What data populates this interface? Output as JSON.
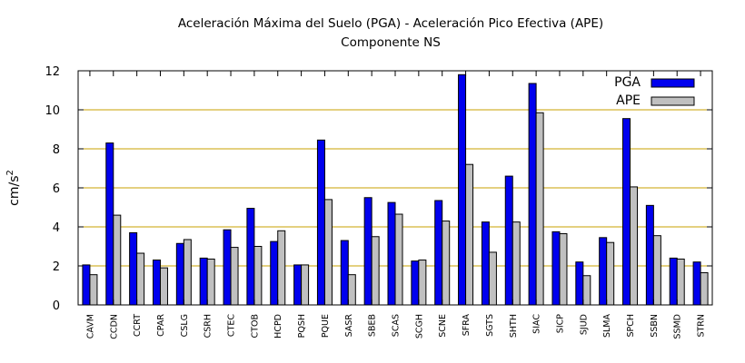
{
  "chart_data": {
    "type": "bar",
    "title": "Aceleración Máxima del Suelo (PGA) -  Aceleración Pico Efectiva (APE)",
    "subtitle": "Componente NS",
    "xlabel": "",
    "ylabel": "cm/s",
    "ylabel_sup": "2",
    "ylim": [
      0,
      12
    ],
    "yticks": [
      0,
      2,
      4,
      6,
      8,
      10,
      12
    ],
    "grid": true,
    "legend_position": "top-right",
    "categories": [
      "CAVM",
      "CCDN",
      "CCRT",
      "CPAR",
      "CSLG",
      "CSRH",
      "CTEC",
      "CTOB",
      "HCPD",
      "PQSH",
      "PQUE",
      "SASR",
      "SBEB",
      "SCAS",
      "SCGH",
      "SCNE",
      "SFRA",
      "SGTS",
      "SHTH",
      "SIAC",
      "SICP",
      "SJUD",
      "SLMA",
      "SPCH",
      "SSBN",
      "SSMD",
      "STRN"
    ],
    "series": [
      {
        "name": "PGA",
        "color": "#0000ee",
        "values": [
          2.05,
          8.3,
          3.7,
          2.3,
          3.15,
          2.4,
          3.85,
          4.95,
          3.25,
          2.05,
          8.45,
          3.3,
          5.5,
          5.25,
          2.25,
          5.35,
          11.8,
          4.25,
          6.6,
          11.35,
          3.75,
          2.2,
          3.45,
          9.55,
          5.1,
          2.4,
          2.2
        ]
      },
      {
        "name": "APE",
        "color": "#c0c0c0",
        "values": [
          1.55,
          4.6,
          2.65,
          1.9,
          3.35,
          2.35,
          2.95,
          3.0,
          3.8,
          2.05,
          5.4,
          1.55,
          3.5,
          4.65,
          2.3,
          4.3,
          7.2,
          2.7,
          4.25,
          9.85,
          3.65,
          1.5,
          3.2,
          6.05,
          3.55,
          2.35,
          1.65
        ]
      }
    ]
  }
}
